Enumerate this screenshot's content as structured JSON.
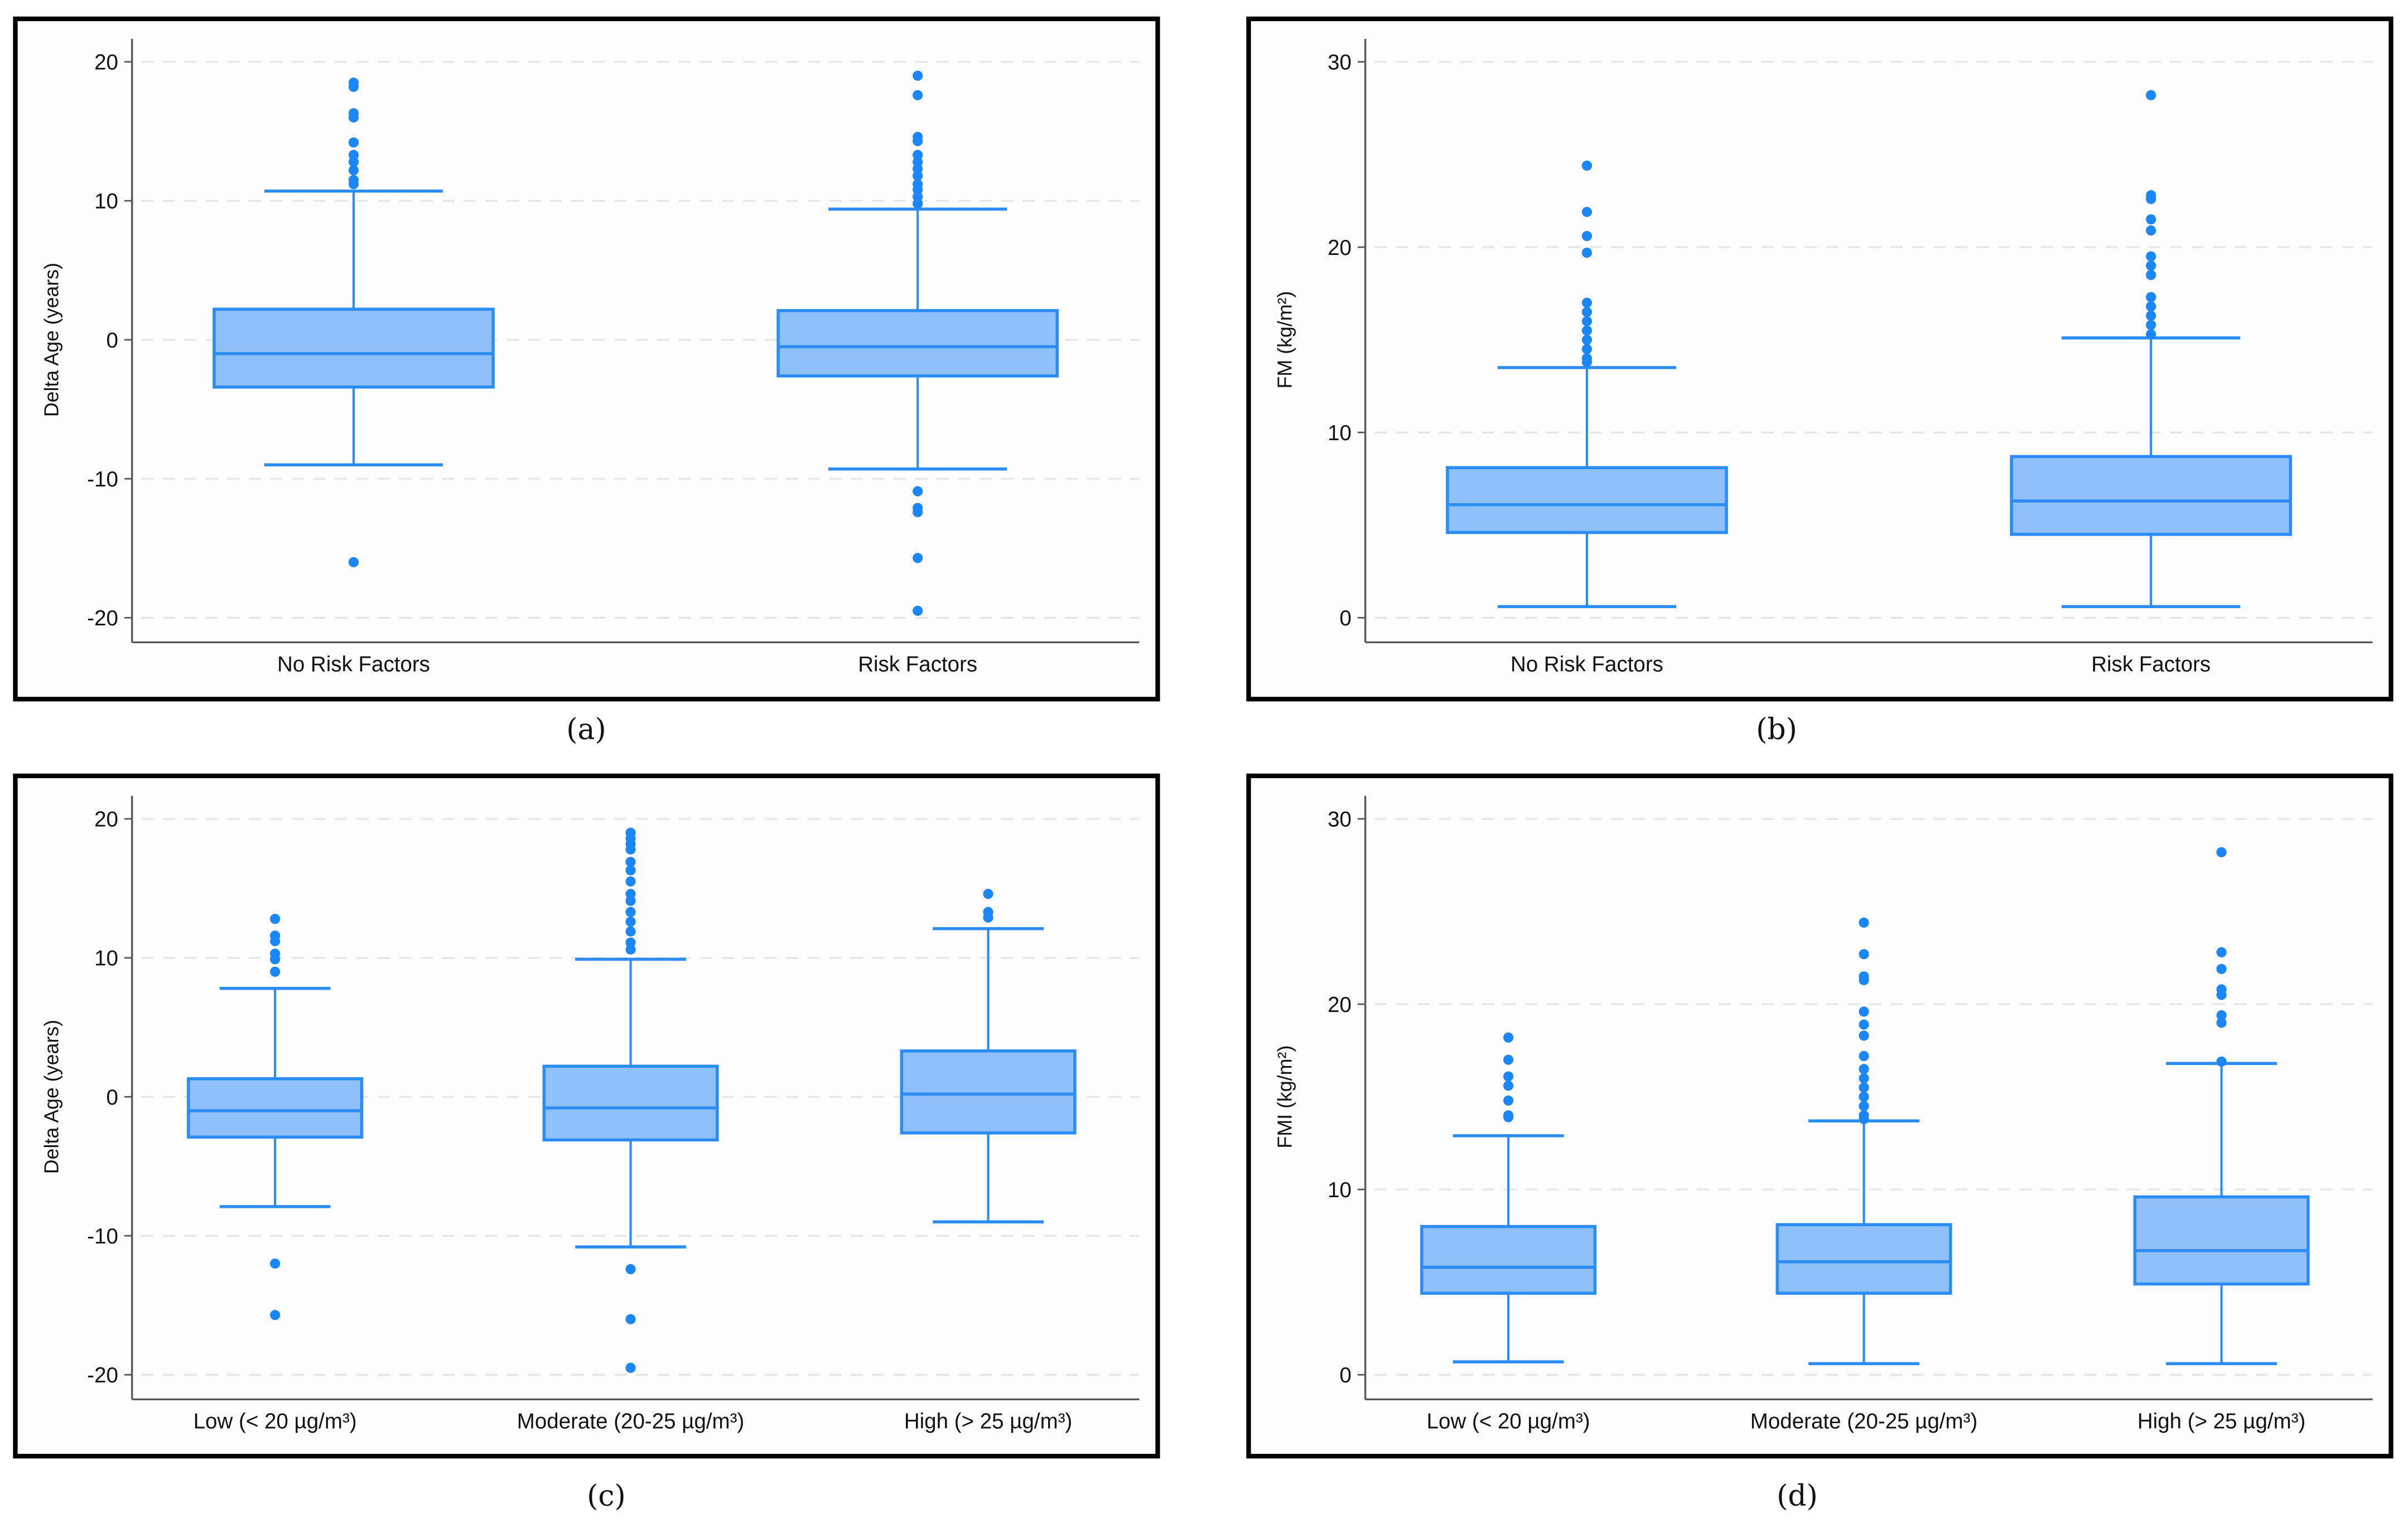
{
  "colors": {
    "box_fill": "#8ec0fb",
    "box_stroke": "#2b8cf5",
    "outlier": "#1a86f7",
    "grid": "#e6e6e6",
    "frame": "#000000"
  },
  "chart_data": [
    {
      "type": "box",
      "caption": "(a)",
      "ylabel": "Delta Age (years)",
      "ylim": [
        -22,
        22
      ],
      "yticks": [
        -20,
        -10,
        0,
        10,
        20
      ],
      "grid": true,
      "categories": [
        "No Risk Factors",
        "Risk Factors"
      ],
      "boxes": [
        {
          "whisker_low": -9,
          "q1": -3.4,
          "median": -1,
          "q3": 2.2,
          "whisker_high": 10.7,
          "outliers": [
            18.5,
            18.2,
            16.3,
            16,
            14.2,
            13.3,
            12.8,
            12.2,
            11.5,
            11.2,
            -16
          ]
        },
        {
          "whisker_low": -9.3,
          "q1": -2.6,
          "median": -0.5,
          "q3": 2.1,
          "whisker_high": 9.4,
          "outliers": [
            19,
            17.6,
            14.6,
            14.3,
            13.3,
            12.8,
            12.3,
            11.8,
            11.2,
            10.8,
            10.3,
            9.8,
            -10.9,
            -12.1,
            -12.4,
            -15.7,
            -19.5
          ]
        }
      ]
    },
    {
      "type": "box",
      "caption": "(b)",
      "ylabel": "FM  (kg/m²)",
      "ylim": [
        -1.3,
        31.3
      ],
      "yticks": [
        0,
        10,
        20,
        30
      ],
      "grid": true,
      "categories": [
        "No Risk Factors",
        "Risk Factors"
      ],
      "boxes": [
        {
          "whisker_low": 0.6,
          "q1": 4.6,
          "median": 6.1,
          "q3": 8.1,
          "whisker_high": 13.5,
          "outliers": [
            24.4,
            21.9,
            20.6,
            19.7,
            17,
            16.5,
            16,
            15.5,
            15,
            14.5,
            14,
            13.8
          ]
        },
        {
          "whisker_low": 0.6,
          "q1": 4.5,
          "median": 6.3,
          "q3": 8.7,
          "whisker_high": 15.1,
          "outliers": [
            28.2,
            22.8,
            22.6,
            21.5,
            20.9,
            19.5,
            19,
            18.5,
            17.3,
            16.8,
            16.3,
            15.8,
            15.3
          ]
        }
      ]
    },
    {
      "type": "box",
      "caption": "(c)",
      "ylabel": "Delta Age (years)",
      "ylim": [
        -21.7,
        22
      ],
      "yticks": [
        -20,
        -10,
        0,
        10,
        20
      ],
      "grid": true,
      "categories": [
        "Low (< 20 µg/m³)",
        "Moderate (20-25 µg/m³)",
        "High (> 25 µg/m³)"
      ],
      "boxes": [
        {
          "whisker_low": -7.9,
          "q1": -2.9,
          "median": -1,
          "q3": 1.3,
          "whisker_high": 7.8,
          "outliers": [
            12.8,
            11.6,
            11.2,
            10.3,
            9.9,
            9,
            -12,
            -15.7
          ]
        },
        {
          "whisker_low": -10.8,
          "q1": -3.1,
          "median": -0.8,
          "q3": 2.2,
          "whisker_high": 9.9,
          "outliers": [
            19,
            18.6,
            18.2,
            17.8,
            16.9,
            16.3,
            15.5,
            14.6,
            14.1,
            13.3,
            12.6,
            11.9,
            11.1,
            10.6,
            -12.4,
            -16,
            -19.5
          ]
        },
        {
          "whisker_low": -9,
          "q1": -2.6,
          "median": 0.2,
          "q3": 3.3,
          "whisker_high": 12.1,
          "outliers": [
            14.6,
            13.3,
            12.9
          ]
        }
      ]
    },
    {
      "type": "box",
      "caption": "(d)",
      "ylabel": "FMI (kg/m²)",
      "ylim": [
        -1.2,
        31.3
      ],
      "yticks": [
        0,
        10,
        20,
        30
      ],
      "grid": true,
      "categories": [
        "Low (< 20 µg/m³)",
        "Moderate (20-25 µg/m³)",
        "High (> 25 µg/m³)"
      ],
      "boxes": [
        {
          "whisker_low": 0.7,
          "q1": 4.4,
          "median": 5.8,
          "q3": 8,
          "whisker_high": 12.9,
          "outliers": [
            18.2,
            17,
            16.1,
            15.6,
            14.8,
            14,
            13.9
          ]
        },
        {
          "whisker_low": 0.6,
          "q1": 4.4,
          "median": 6.1,
          "q3": 8.1,
          "whisker_high": 13.7,
          "outliers": [
            24.4,
            22.7,
            21.5,
            21.3,
            19.6,
            18.9,
            18.3,
            17.2,
            16.5,
            16,
            15.5,
            15,
            14.5,
            14,
            13.8
          ]
        },
        {
          "whisker_low": 0.6,
          "q1": 4.9,
          "median": 6.7,
          "q3": 9.6,
          "whisker_high": 16.8,
          "outliers": [
            28.2,
            22.8,
            21.9,
            20.8,
            20.5,
            19.4,
            19,
            16.9
          ]
        }
      ]
    }
  ]
}
